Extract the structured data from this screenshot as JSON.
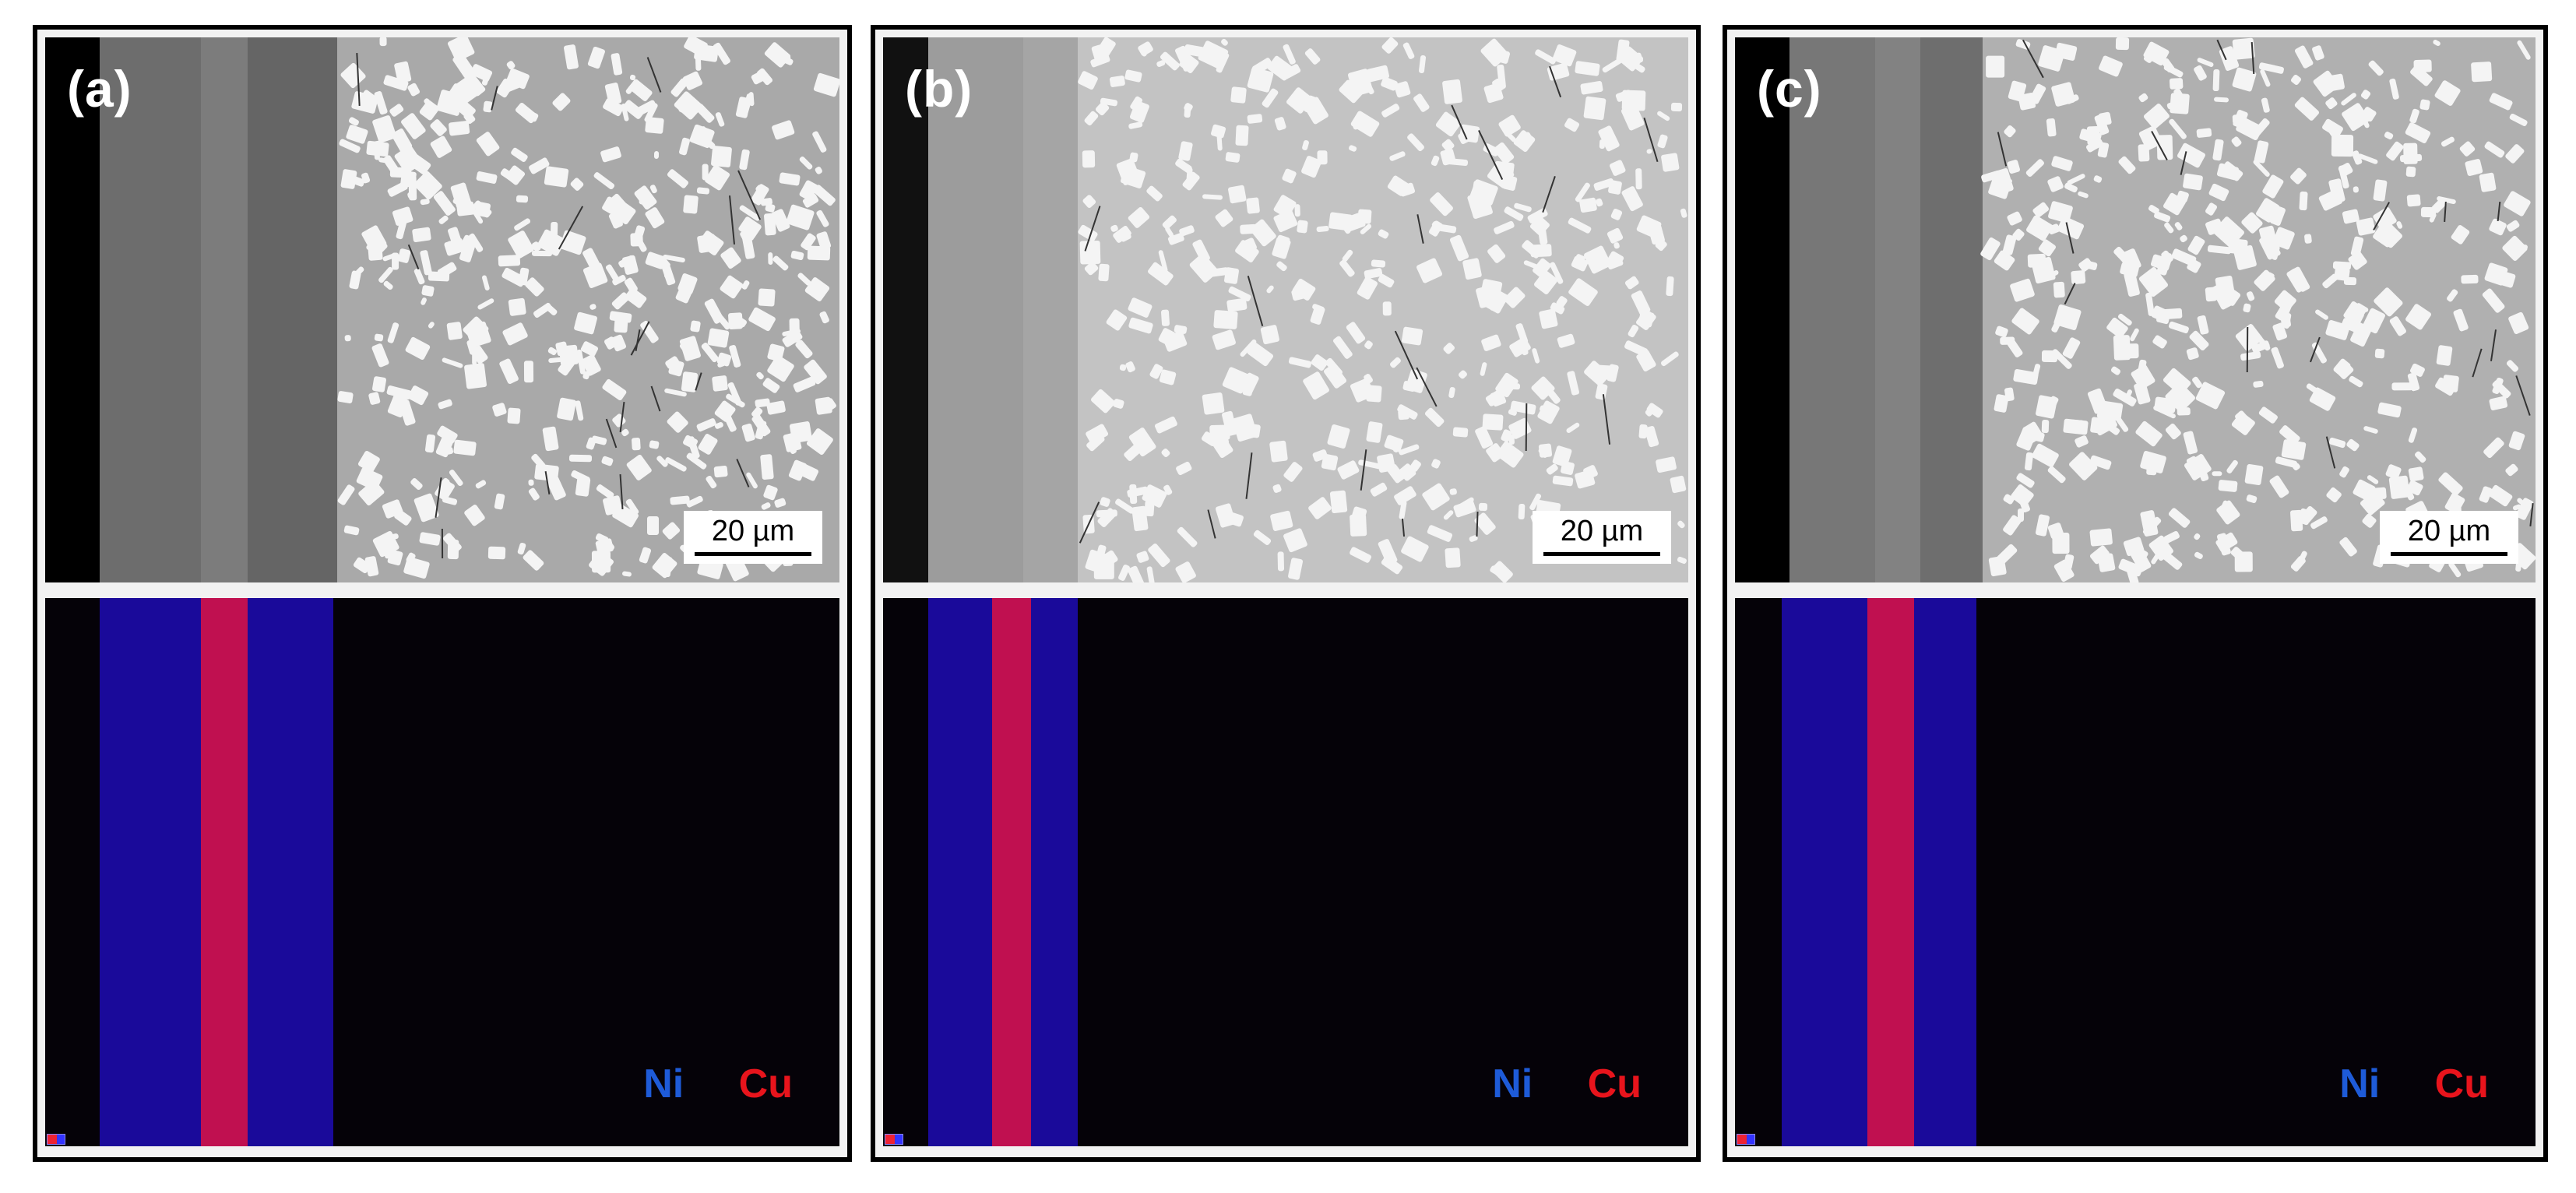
{
  "panels": [
    {
      "label": "(a)",
      "scale": "20 µm",
      "legend": {
        "ni": "Ni",
        "cu": "Cu"
      }
    },
    {
      "label": "(b)",
      "scale": "20 µm",
      "legend": {
        "ni": "Ni",
        "cu": "Cu"
      }
    },
    {
      "label": "(c)",
      "scale": "20 µm",
      "legend": {
        "ni": "Ni",
        "cu": "Cu"
      }
    }
  ],
  "colors": {
    "ni": "#1e5bd8",
    "cu": "#e8141c",
    "ni_map": "#1a0a9a",
    "cu_map": "#c01050"
  }
}
